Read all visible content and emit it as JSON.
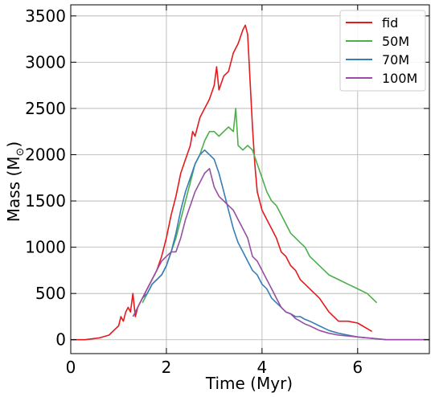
{
  "chart_data": {
    "type": "line",
    "title": "",
    "xlabel": "Time (Myr)",
    "ylabel": "Mass (M",
    "ylabel_sub": "⊙",
    "ylabel_close": ")",
    "xlim": [
      0,
      7.5
    ],
    "ylim": [
      -150,
      3620
    ],
    "xticks": [
      0,
      2,
      4,
      6
    ],
    "yticks": [
      0,
      500,
      1000,
      1500,
      2000,
      2500,
      3000,
      3500
    ],
    "xtick_labels": [
      "0",
      "2",
      "4",
      "6"
    ],
    "ytick_labels": [
      "0",
      "500",
      "1000",
      "1500",
      "2000",
      "2500",
      "3000",
      "3500"
    ],
    "grid": true,
    "legend_position": "top-right",
    "series": [
      {
        "name": "fid",
        "color": "#e41a1c",
        "x": [
          0,
          0.3,
          0.6,
          0.8,
          0.9,
          1.0,
          1.05,
          1.1,
          1.15,
          1.2,
          1.25,
          1.3,
          1.35,
          1.4,
          1.5,
          1.6,
          1.7,
          1.8,
          1.9,
          2.0,
          2.1,
          2.2,
          2.3,
          2.4,
          2.5,
          2.55,
          2.6,
          2.7,
          2.8,
          2.9,
          3.0,
          3.05,
          3.1,
          3.2,
          3.3,
          3.4,
          3.5,
          3.6,
          3.65,
          3.7,
          3.75,
          3.8,
          3.85,
          3.9,
          4.0,
          4.1,
          4.2,
          4.3,
          4.4,
          4.5,
          4.6,
          4.7,
          4.8,
          4.9,
          5.0,
          5.2,
          5.4,
          5.6,
          5.8,
          6.0,
          6.2,
          6.3
        ],
        "y": [
          0,
          0,
          20,
          50,
          100,
          150,
          250,
          200,
          300,
          350,
          300,
          500,
          250,
          350,
          450,
          550,
          650,
          750,
          900,
          1100,
          1350,
          1550,
          1800,
          1950,
          2100,
          2250,
          2200,
          2400,
          2500,
          2600,
          2750,
          2950,
          2700,
          2850,
          2900,
          3100,
          3200,
          3350,
          3400,
          3300,
          2800,
          2300,
          1900,
          1600,
          1400,
          1300,
          1200,
          1100,
          950,
          900,
          800,
          750,
          650,
          600,
          550,
          450,
          300,
          200,
          200,
          180,
          120,
          90
        ]
      },
      {
        "name": "50M",
        "color": "#4daf4a",
        "x": [
          1.5,
          1.6,
          1.7,
          1.8,
          1.9,
          2.0,
          2.1,
          2.2,
          2.3,
          2.4,
          2.5,
          2.6,
          2.7,
          2.8,
          2.9,
          3.0,
          3.1,
          3.2,
          3.3,
          3.4,
          3.45,
          3.5,
          3.6,
          3.7,
          3.8,
          3.9,
          4.0,
          4.1,
          4.2,
          4.3,
          4.4,
          4.5,
          4.6,
          4.7,
          4.8,
          4.9,
          5.0,
          5.2,
          5.4,
          5.6,
          5.8,
          6.0,
          6.2,
          6.3,
          6.4
        ],
        "y": [
          400,
          500,
          600,
          650,
          700,
          800,
          950,
          1100,
          1300,
          1500,
          1700,
          1900,
          2000,
          2150,
          2250,
          2250,
          2200,
          2250,
          2300,
          2250,
          2500,
          2100,
          2050,
          2100,
          2050,
          1900,
          1750,
          1600,
          1500,
          1450,
          1350,
          1250,
          1150,
          1100,
          1050,
          1000,
          900,
          800,
          700,
          650,
          600,
          550,
          500,
          450,
          400
        ]
      },
      {
        "name": "70M",
        "color": "#377eb8",
        "x": [
          1.5,
          1.6,
          1.7,
          1.8,
          1.9,
          2.0,
          2.1,
          2.2,
          2.3,
          2.4,
          2.5,
          2.6,
          2.7,
          2.8,
          2.9,
          3.0,
          3.1,
          3.2,
          3.3,
          3.4,
          3.5,
          3.6,
          3.7,
          3.8,
          3.9,
          4.0,
          4.1,
          4.2,
          4.3,
          4.4,
          4.5,
          4.6,
          4.7,
          4.8,
          4.9,
          5.0,
          5.2,
          5.4,
          5.6,
          5.8,
          6.0,
          6.2,
          6.4,
          6.6,
          7.0,
          7.5
        ],
        "y": [
          450,
          500,
          600,
          650,
          700,
          800,
          950,
          1150,
          1400,
          1600,
          1750,
          1900,
          2000,
          2050,
          2000,
          1950,
          1800,
          1600,
          1400,
          1200,
          1050,
          950,
          850,
          750,
          700,
          600,
          550,
          450,
          400,
          350,
          300,
          280,
          250,
          250,
          220,
          200,
          150,
          100,
          70,
          50,
          30,
          20,
          10,
          0,
          0,
          0
        ]
      },
      {
        "name": "100M",
        "color": "#984ea3",
        "x": [
          1.3,
          1.4,
          1.5,
          1.6,
          1.7,
          1.8,
          1.9,
          2.0,
          2.1,
          2.2,
          2.3,
          2.4,
          2.5,
          2.6,
          2.7,
          2.8,
          2.9,
          3.0,
          3.1,
          3.2,
          3.3,
          3.4,
          3.5,
          3.6,
          3.7,
          3.8,
          3.9,
          4.0,
          4.1,
          4.2,
          4.3,
          4.4,
          4.5,
          4.6,
          4.7,
          4.8,
          4.9,
          5.0,
          5.2,
          5.4,
          5.6,
          5.8,
          6.0,
          6.2,
          6.4,
          6.6,
          7.0,
          7.5
        ],
        "y": [
          250,
          350,
          450,
          550,
          650,
          750,
          850,
          900,
          950,
          950,
          1100,
          1300,
          1450,
          1600,
          1700,
          1800,
          1850,
          1650,
          1550,
          1500,
          1450,
          1400,
          1300,
          1200,
          1100,
          900,
          850,
          750,
          650,
          550,
          450,
          350,
          300,
          280,
          230,
          200,
          170,
          150,
          100,
          70,
          50,
          40,
          30,
          20,
          10,
          0,
          0,
          0
        ]
      }
    ]
  }
}
